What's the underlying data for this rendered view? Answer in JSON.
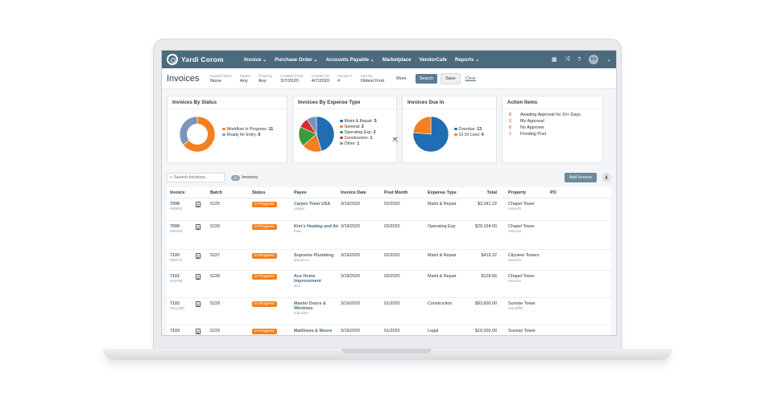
{
  "app": {
    "logo_text": "Yardi Corom",
    "nav": [
      "Invoice ⌄",
      "Purchase Order ⌄",
      "Accounts Payable ⌄",
      "Marketplace",
      "VendorCafe",
      "Reports ⌄"
    ],
    "user_initials": "BS"
  },
  "filters": {
    "page_title": "Invoices",
    "saved_filters": {
      "label": "Saved Filters",
      "value": "None"
    },
    "payee": {
      "label": "Payee",
      "value": "Any"
    },
    "property": {
      "label": "Property",
      "value": "Any"
    },
    "created_from": {
      "label": "Created From",
      "value": "3/7/2020"
    },
    "created_to": {
      "label": "Created To",
      "value": "4/7/2020"
    },
    "invoice_num": {
      "label": "Invoice #",
      "value": "#"
    },
    "sort_by": {
      "label": "Sort By",
      "value": "Oldest First"
    },
    "more": "More",
    "search": "Search",
    "save": "Save",
    "clear": "Clear"
  },
  "widgets": {
    "status": {
      "title": "Invoices By Status",
      "items": [
        {
          "label": "Workflow In Progress:",
          "value": "11",
          "color": "#f47f20"
        },
        {
          "label": "Ready for Entry:",
          "value": "6",
          "color": "#7b95b8"
        }
      ]
    },
    "expense": {
      "title": "Invoices By Expense Type",
      "items": [
        {
          "label": "Maint & Repair:",
          "value": "5",
          "color": "#1f6db3"
        },
        {
          "label": "General:",
          "value": "2",
          "color": "#f47f20"
        },
        {
          "label": "Operating Exp:",
          "value": "2",
          "color": "#3a9b3a"
        },
        {
          "label": "Construction:",
          "value": "1",
          "color": "#d62d2d"
        },
        {
          "label": "Other:",
          "value": "1",
          "color": "#7b95b8"
        }
      ]
    },
    "due": {
      "title": "Invoices Due In",
      "items": [
        {
          "label": "Overdue:",
          "value": "13",
          "color": "#1f6db3"
        },
        {
          "label": "10 Or Less:",
          "value": "4",
          "color": "#f47f20"
        }
      ]
    },
    "actions": {
      "title": "Action Items",
      "items": [
        {
          "num": "8",
          "label": "Awaiting Approval for 10+ Days"
        },
        {
          "num": "2",
          "label": "My Approval"
        },
        {
          "num": "6",
          "label": "No Approver"
        },
        {
          "num": "1",
          "label": "Pending Post"
        }
      ]
    }
  },
  "toolbar": {
    "search_placeholder": "Search Invoices...",
    "count": "17",
    "count_label": "Invoices",
    "add_invoice": "Add Invoice"
  },
  "table": {
    "headers": [
      "Invoice",
      "Batch",
      "Status",
      "Payee",
      "Invoice Date",
      "Post Month",
      "Expense Type",
      "Total",
      "Property",
      "PO"
    ],
    "rows": [
      {
        "invoice": "7098",
        "inv_sub": "#36552",
        "batch": "5225",
        "status": "In Progress",
        "payee": "Carpet Town USA",
        "payee_sub": "carpet",
        "date": "3/19/2020",
        "post": "02/2020",
        "expense": "Maint & Repair",
        "total": "$3,341.22",
        "property": "Chapel Tower",
        "prop_sub": "resnc01"
      },
      {
        "invoice": "7099",
        "inv_sub": "#65418",
        "batch": "5226",
        "status": "In Progress",
        "payee": "Kim's Heating and Air",
        "payee_sub": "hvac",
        "date": "3/19/2020",
        "post": "03/2020",
        "expense": "Operating Exp",
        "total": "$20,164.00",
        "property": "Chapel Tower",
        "prop_sub": "resnc01"
      },
      {
        "invoice": "7100",
        "inv_sub": "#86721",
        "batch": "5227",
        "status": "In Progress",
        "payee": "Supreme Plumbing",
        "payee_sub": "plumb-co",
        "date": "3/19/2020",
        "post": "02/2020",
        "expense": "Maint & Repair",
        "total": "$419.32",
        "property": "Cityview Towers",
        "prop_sub": "resnc01"
      },
      {
        "invoice": "7101",
        "inv_sub": "#19766",
        "batch": "5228",
        "status": "In Progress",
        "payee": "Ace Home Improvement",
        "payee_sub": "ace",
        "date": "3/19/2020",
        "post": "03/2020",
        "expense": "Maint & Repair",
        "total": "$128.66",
        "property": "Chapel Tower",
        "prop_sub": "resnc01"
      },
      {
        "invoice": "7102",
        "inv_sub": "#612330",
        "batch": "5229",
        "status": "In Progress",
        "payee": "Master Doors & Windows",
        "payee_sub": "sub-door",
        "date": "3/19/2020",
        "post": "01/2020",
        "expense": "Construction",
        "total": "$93,600.00",
        "property": "Sunrise Tower",
        "prop_sub": "comoff01"
      },
      {
        "invoice": "7103",
        "inv_sub": "",
        "batch": "5229",
        "status": "In Progress",
        "payee": "Matthews & Moore",
        "payee_sub": "",
        "date": "3/19/2020",
        "post": "01/2020",
        "expense": "Legal",
        "total": "$10,000.00",
        "property": "Sunrise Tower",
        "prop_sub": ""
      }
    ]
  }
}
